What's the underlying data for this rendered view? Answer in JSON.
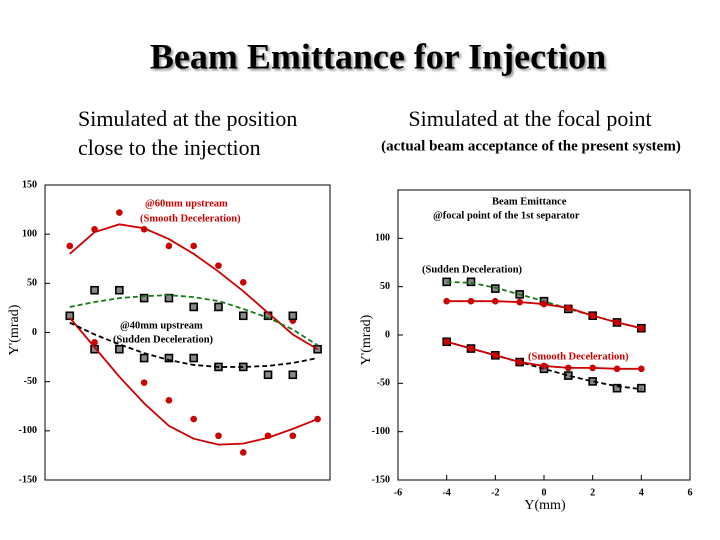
{
  "header": {
    "title": "Beam Emittance for Injection",
    "left_subtitle": [
      "Simulated at the position",
      "close to the injection"
    ],
    "right_subtitle": [
      "Simulated at the focal point",
      "(actual beam acceptance of the present system)"
    ]
  },
  "chart_data": [
    {
      "type": "scatter",
      "ylabel": "Y'(mrad)",
      "xlim": [
        -6,
        5.5
      ],
      "ylim": [
        -150,
        150
      ],
      "yticks": [
        150,
        100,
        50,
        0,
        -50,
        -100,
        -150
      ],
      "annotations": [
        {
          "text": "@60mm upstream",
          "color": "#cc0000"
        },
        {
          "text": "(Smooth Deceleration)",
          "color": "#cc0000"
        },
        {
          "text": "@40mm upstream",
          "color": "#000000"
        },
        {
          "text": "(Sudden Deceleration)",
          "color": "#000000"
        }
      ],
      "series": [
        {
          "color": "#cc0000",
          "marker": "circle",
          "x": [
            -5,
            -4,
            -3,
            -2,
            -1,
            0,
            1,
            2,
            4
          ],
          "values": [
            88,
            105,
            122,
            105,
            88,
            88,
            68,
            51,
            12
          ]
        },
        {
          "color": "#cc0000",
          "marker": "circle",
          "x": [
            -4,
            -2,
            -1,
            0,
            1,
            2,
            3,
            4,
            5
          ],
          "values": [
            -10,
            -51,
            -69,
            -88,
            -105,
            -122,
            -105,
            -105,
            -88
          ]
        },
        {
          "color": "#000000",
          "marker": "square",
          "x": [
            -5,
            -4,
            -3,
            -2,
            -1,
            0,
            1,
            2,
            3,
            4,
            5
          ],
          "values": [
            17,
            43,
            43,
            35,
            35,
            26,
            26,
            17,
            17,
            17,
            -17
          ]
        },
        {
          "color": "#000000",
          "marker": "square",
          "x": [
            -4,
            -3,
            -2,
            -1,
            0,
            1,
            2,
            3,
            4
          ],
          "values": [
            -17,
            -17,
            -26,
            -26,
            -26,
            -35,
            -35,
            -43,
            -43
          ]
        },
        {
          "color": "#cc0000",
          "line": "solid",
          "x": [
            -5,
            -4,
            -3,
            -2,
            -1,
            0,
            1,
            2,
            3,
            4,
            5
          ],
          "values": [
            80,
            102,
            110,
            106,
            95,
            80,
            62,
            42,
            20,
            -2,
            -17
          ]
        },
        {
          "color": "#cc0000",
          "line": "solid",
          "x": [
            -5,
            -4,
            -3,
            -2,
            -1,
            0,
            1,
            2,
            3,
            4,
            5
          ],
          "values": [
            15,
            -15,
            -45,
            -72,
            -95,
            -108,
            -114,
            -113,
            -107,
            -98,
            -88
          ]
        },
        {
          "color": "#1a7a1a",
          "line": "dashed",
          "x": [
            -5,
            -4,
            -3,
            -2,
            -1,
            0,
            1,
            2,
            3,
            4,
            5
          ],
          "values": [
            26,
            31,
            35,
            37,
            38,
            36,
            32,
            24,
            15,
            3,
            -13
          ]
        },
        {
          "color": "#000000",
          "line": "dashed",
          "x": [
            -5,
            -4,
            -3,
            -2,
            -1,
            0,
            1,
            2,
            3,
            4,
            5
          ],
          "values": [
            10,
            -2,
            -12,
            -21,
            -28,
            -33,
            -35,
            -35,
            -34,
            -31,
            -26
          ]
        }
      ]
    },
    {
      "type": "scatter",
      "xlabel": "Y(mm)",
      "ylabel": "Y'(mrad)",
      "xlim": [
        -6,
        6
      ],
      "ylim": [
        -150,
        150
      ],
      "xticks": [
        -6,
        -4,
        -2,
        0,
        2,
        4,
        6
      ],
      "yticks": [
        100,
        50,
        0,
        -50,
        -100,
        -150
      ],
      "annotations": [
        {
          "text": "Beam Emittance",
          "color": "#000000"
        },
        {
          "text": "@focal point of the 1st separator",
          "color": "#000000"
        },
        {
          "text": "(Sudden Deceleration)",
          "color": "#000000"
        },
        {
          "text": "(Smooth Deceleration)",
          "color": "#cc0000"
        }
      ],
      "series": [
        {
          "color": "#000000",
          "marker": "square",
          "x": [
            -4,
            -3,
            -2,
            -1,
            0,
            1,
            2,
            3,
            4
          ],
          "values": [
            55,
            55,
            48,
            42,
            35,
            27,
            20,
            13,
            7
          ]
        },
        {
          "color": "#000000",
          "marker": "square",
          "x": [
            -4,
            -3,
            -2,
            -1,
            0,
            1,
            2,
            3,
            4
          ],
          "values": [
            -7,
            -14,
            -21,
            -28,
            -35,
            -42,
            -48,
            -55,
            -55
          ]
        },
        {
          "color": "#1a7a1a",
          "line": "dashed",
          "x": [
            -4,
            -3,
            -2,
            -1,
            0,
            1,
            2,
            3,
            4
          ],
          "values": [
            55,
            54,
            49,
            42,
            35,
            27,
            20,
            13,
            7
          ]
        },
        {
          "color": "#000000",
          "line": "dashed",
          "x": [
            -4,
            -3,
            -2,
            -1,
            0,
            1,
            2,
            3,
            4
          ],
          "values": [
            -7,
            -14,
            -21,
            -28,
            -35,
            -42,
            -48,
            -53,
            -56
          ]
        },
        {
          "color": "#cc0000",
          "marker": "circle",
          "line": "solid",
          "x": [
            -4,
            -3,
            -2,
            -1,
            0,
            1,
            2,
            3,
            4
          ],
          "values": [
            35,
            35,
            35,
            34,
            32,
            28,
            20,
            13,
            7
          ]
        },
        {
          "color": "#cc0000",
          "marker": "circle",
          "line": "solid",
          "x": [
            -4,
            -3,
            -2,
            -1,
            0,
            1,
            2,
            3,
            4
          ],
          "values": [
            -7,
            -14,
            -21,
            -28,
            -32,
            -34,
            -34,
            -35,
            -35
          ]
        }
      ]
    }
  ]
}
